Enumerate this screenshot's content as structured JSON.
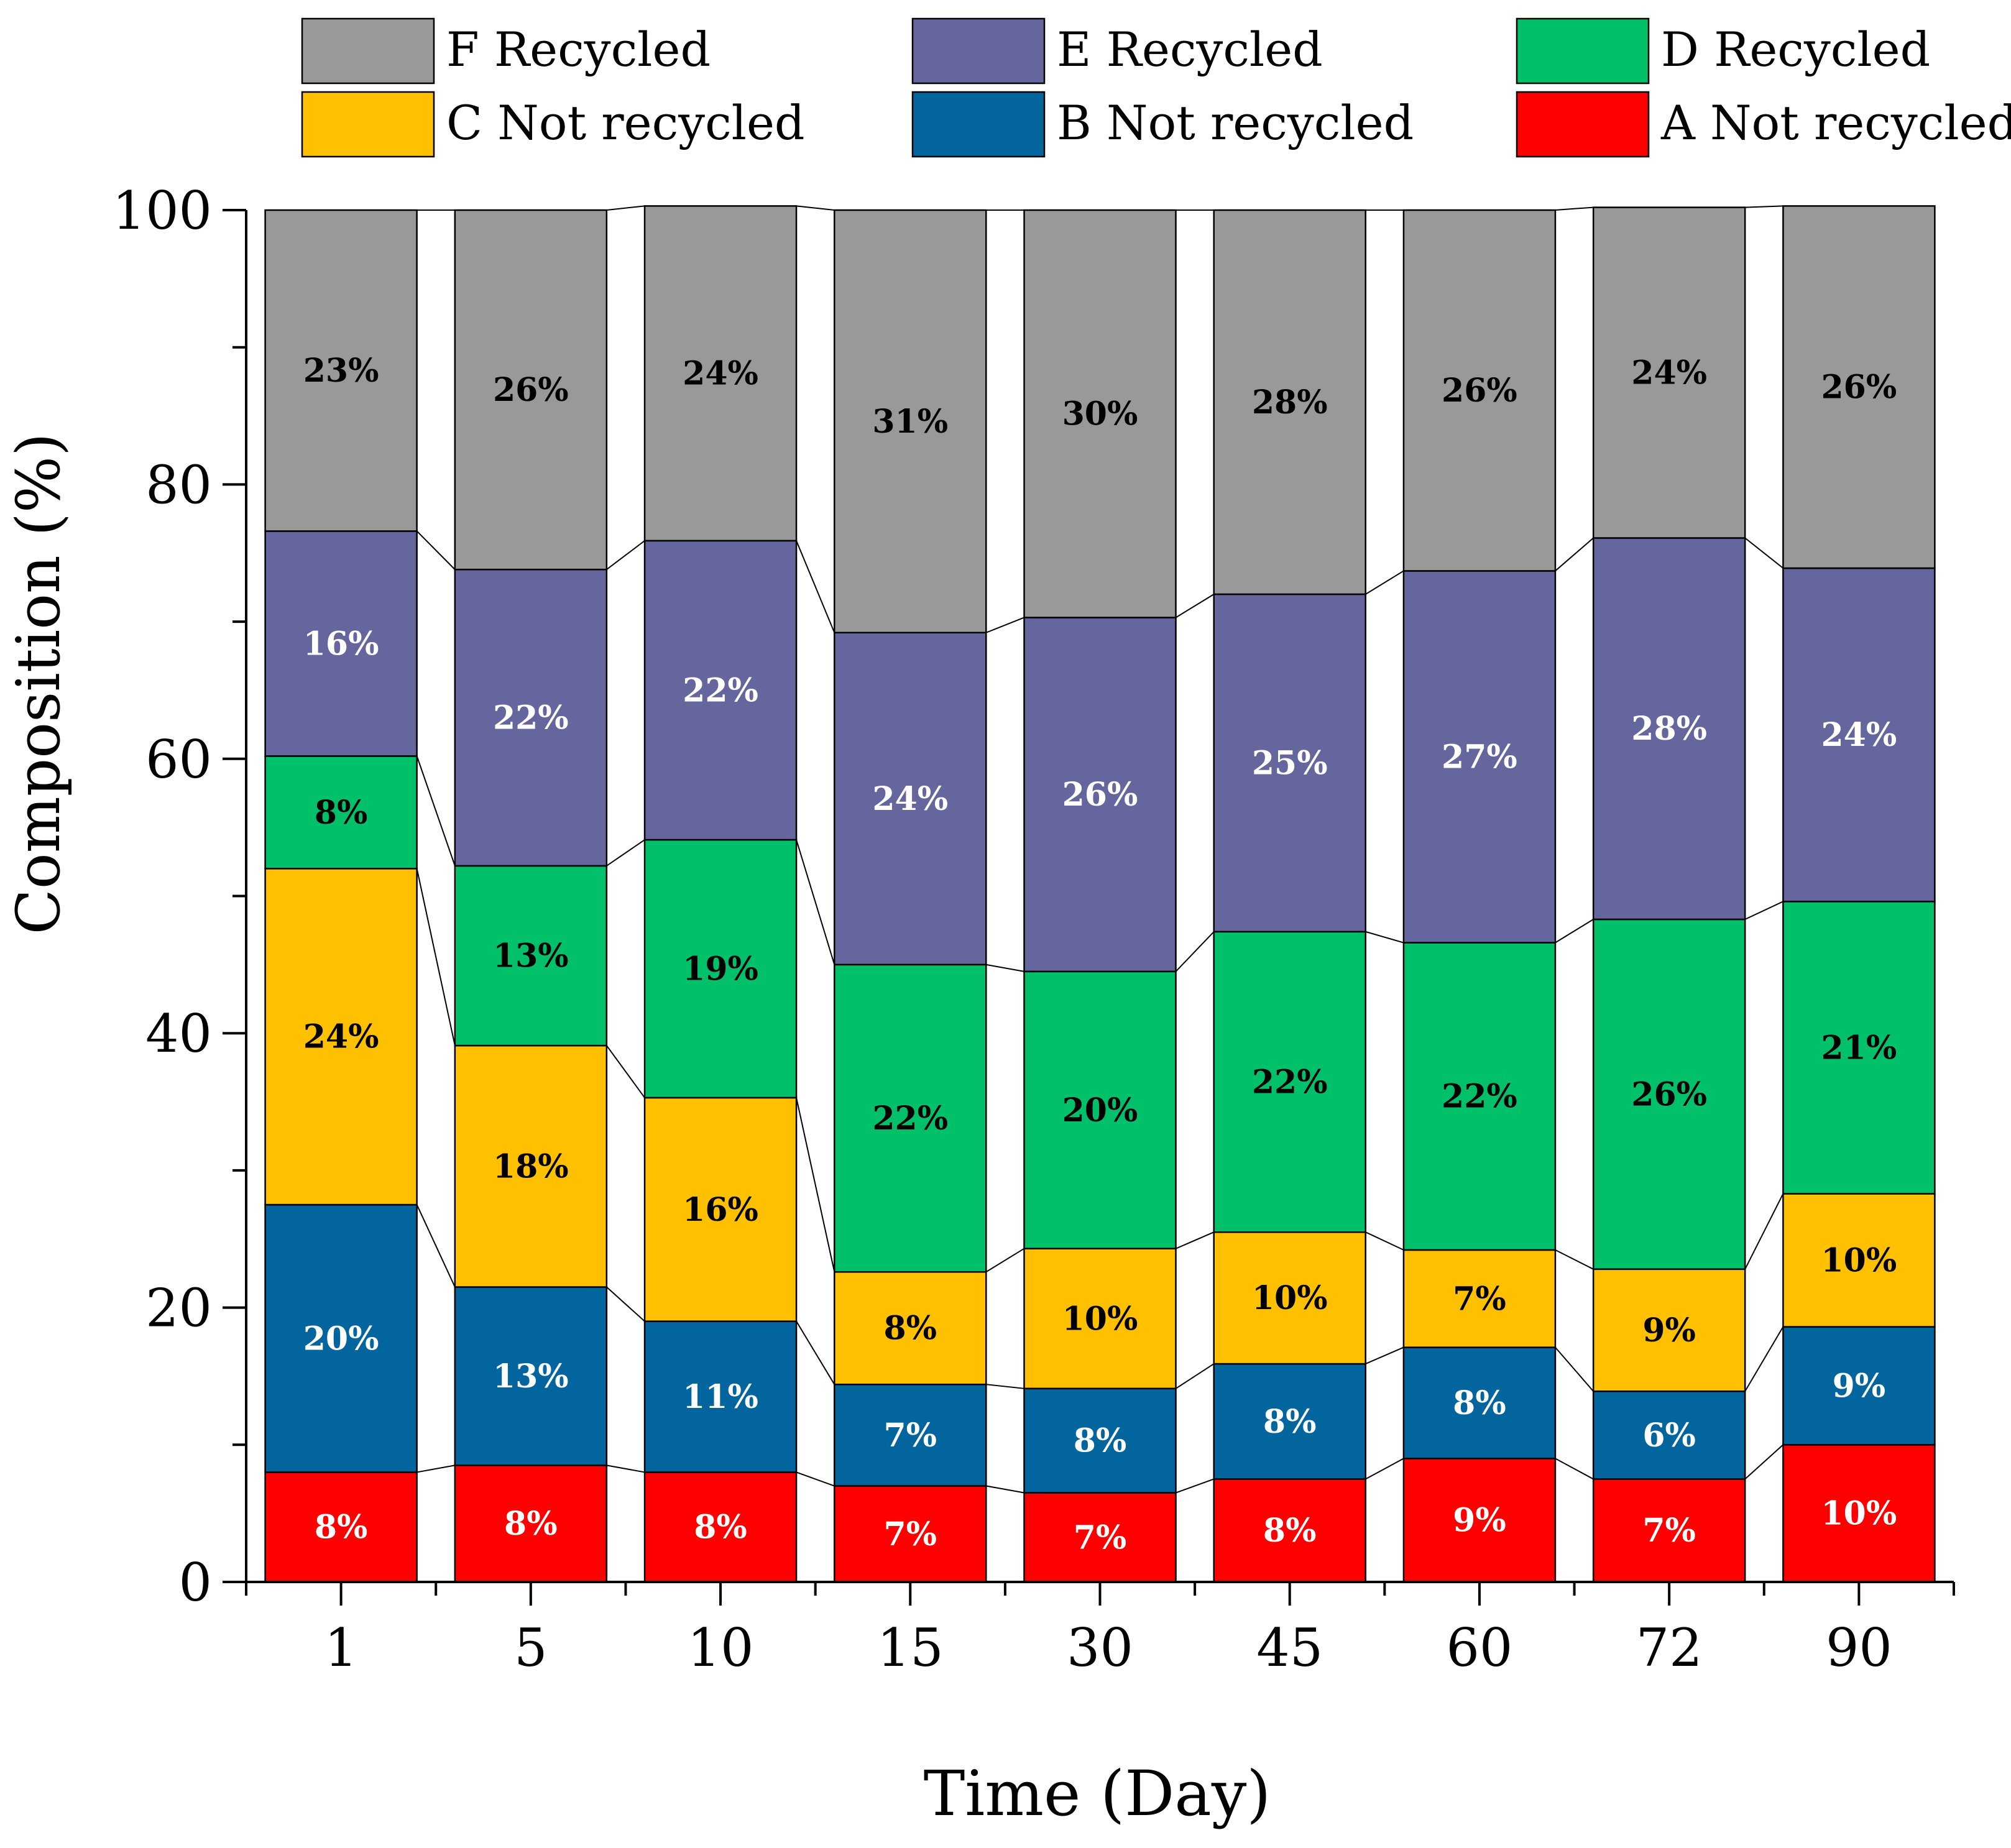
{
  "chart_data": {
    "type": "bar",
    "stacked": true,
    "title": "",
    "xlabel": "Time (Day)",
    "ylabel": "Composition (%)",
    "ylim": [
      0,
      100
    ],
    "yticks": [
      0,
      20,
      40,
      60,
      80,
      100
    ],
    "categories": [
      "1",
      "5",
      "10",
      "15",
      "30",
      "45",
      "60",
      "72",
      "90"
    ],
    "legend_position": "top",
    "series": [
      {
        "name": "A Not recycled",
        "color": "#ff0000",
        "values": [
          8,
          8.5,
          8,
          7,
          6.5,
          7.5,
          9,
          7.5,
          10
        ],
        "labels": [
          "8%",
          "8%",
          "8%",
          "7%",
          "7%",
          "8%",
          "9%",
          "7%",
          "10%"
        ],
        "label_color": "#ffffff"
      },
      {
        "name": "B Not recycled",
        "color": "#02659e",
        "values": [
          19.5,
          13,
          11,
          7.4,
          7.6,
          8.4,
          8.1,
          6.4,
          8.6
        ],
        "labels": [
          "20%",
          "13%",
          "11%",
          "7%",
          "8%",
          "8%",
          "8%",
          "6%",
          "9%"
        ],
        "label_color": "#ffffff"
      },
      {
        "name": "C Not recycled",
        "color": "#ffc000",
        "values": [
          24.5,
          17.6,
          16.3,
          8.2,
          10.2,
          9.6,
          7.1,
          8.9,
          9.7
        ],
        "labels": [
          "24%",
          "18%",
          "16%",
          "8%",
          "10%",
          "10%",
          "7%",
          "9%",
          "10%"
        ],
        "label_color": "#000000"
      },
      {
        "name": "D Recycled",
        "color": "#00c16a",
        "values": [
          8.2,
          13.1,
          18.8,
          22.4,
          20.2,
          21.9,
          22.4,
          25.5,
          21.3
        ],
        "labels": [
          "8%",
          "13%",
          "19%",
          "22%",
          "20%",
          "22%",
          "22%",
          "26%",
          "21%"
        ],
        "label_color": "#000000"
      },
      {
        "name": "E Recycled",
        "color": "#66669e",
        "values": [
          16.4,
          21.6,
          21.8,
          24.2,
          25.8,
          24.6,
          27.1,
          27.8,
          24.3
        ],
        "labels": [
          "16%",
          "22%",
          "22%",
          "24%",
          "26%",
          "25%",
          "27%",
          "28%",
          "24%"
        ],
        "label_color": "#ffffff"
      },
      {
        "name": "F Recycled",
        "color": "#999999",
        "values": [
          23.4,
          26.2,
          24.4,
          30.8,
          29.7,
          28,
          26.3,
          24.1,
          26.4
        ],
        "labels": [
          "23%",
          "26%",
          "24%",
          "31%",
          "30%",
          "28%",
          "26%",
          "24%",
          "26%"
        ],
        "label_color": "#000000"
      }
    ],
    "legend": [
      {
        "series_index": 5
      },
      {
        "series_index": 4
      },
      {
        "series_index": 3
      },
      {
        "series_index": 2
      },
      {
        "series_index": 1
      },
      {
        "series_index": 0
      }
    ],
    "connector_lines": true
  }
}
